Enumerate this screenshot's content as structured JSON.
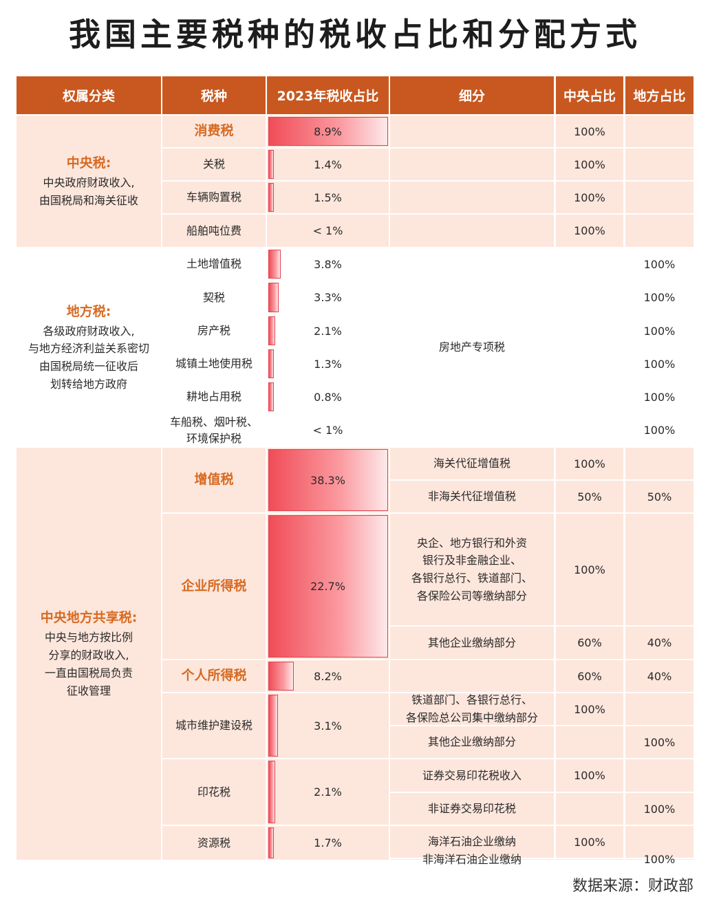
{
  "title": "我国主要税种的税收占比和分配方式",
  "source": "数据来源：财政部",
  "headers": [
    "权属分类",
    "税种",
    "2023年税收占比",
    "细分",
    "中央占比",
    "地方占比"
  ],
  "colors": {
    "header": "#c8581f",
    "shade": "#fde6dc",
    "bar": "#f04d58",
    "highlight": "#d66a22"
  },
  "categories": [
    {
      "title": "中央税:",
      "desc": [
        "中央政府财政收入,",
        "由国税局和海关征收"
      ],
      "rows": [
        0,
        4
      ]
    },
    {
      "title": "地方税:",
      "desc": [
        "各级政府财政收入,",
        "与地方经济利益关系密切",
        "由国税局统一征收后",
        "划转给地方政府"
      ],
      "rows": [
        4,
        10
      ]
    },
    {
      "title": "中央地方共享税:",
      "desc": [
        "中央与地方按比例",
        "分享的财政收入,",
        "一直由国税局负责",
        "征收管理"
      ],
      "rows": [
        10,
        23
      ]
    }
  ],
  "chart_data": {
    "type": "table",
    "title": "我国主要税种的税收占比和分配方式",
    "xlabel": "2023年税收占比",
    "taxes": [
      {
        "name": "消费税",
        "label": "8.9%",
        "value": 8.9,
        "highlight": true,
        "rows": [
          0,
          1
        ]
      },
      {
        "name": "关税",
        "label": "1.4%",
        "value": 1.4,
        "rows": [
          1,
          2
        ]
      },
      {
        "name": "车辆购置税",
        "label": "1.5%",
        "value": 1.5,
        "rows": [
          2,
          3
        ]
      },
      {
        "name": "船舶吨位费",
        "label": "< 1%",
        "value": null,
        "rows": [
          3,
          4
        ]
      },
      {
        "name": "土地增值税",
        "label": "3.8%",
        "value": 3.8,
        "rows": [
          4,
          5
        ]
      },
      {
        "name": "契税",
        "label": "3.3%",
        "value": 3.3,
        "rows": [
          5,
          6
        ]
      },
      {
        "name": "房产税",
        "label": "2.1%",
        "value": 2.1,
        "rows": [
          6,
          7
        ]
      },
      {
        "name": "城镇土地使用税",
        "label": "1.3%",
        "value": 1.3,
        "rows": [
          7,
          8
        ]
      },
      {
        "name": "耕地占用税",
        "label": "0.8%",
        "value": 0.8,
        "rows": [
          8,
          9
        ]
      },
      {
        "name": "车船税、烟叶税、\n环境保护税",
        "label": "< 1%",
        "value": null,
        "rows": [
          9,
          10
        ]
      },
      {
        "name": "增值税",
        "label": "38.3%",
        "value": 38.3,
        "highlight": true,
        "rows": [
          10,
          12
        ]
      },
      {
        "name": "企业所得税",
        "label": "22.7%",
        "value": 22.7,
        "highlight": true,
        "rows": [
          12,
          15
        ]
      },
      {
        "name": "个人所得税",
        "label": "8.2%",
        "value": 8.2,
        "highlight": true,
        "rows": [
          15,
          16
        ]
      },
      {
        "name": "城市维护建设税",
        "label": "3.1%",
        "value": 3.1,
        "rows": [
          16,
          18
        ]
      },
      {
        "name": "印花税",
        "label": "2.1%",
        "value": 2.1,
        "rows": [
          18,
          20
        ]
      },
      {
        "name": "资源税",
        "label": "1.7%",
        "value": 1.7,
        "rows": [
          20,
          22
        ]
      }
    ],
    "details": [
      {
        "text": "",
        "central": "100%",
        "local": "",
        "rows": [
          0,
          1
        ]
      },
      {
        "text": "",
        "central": "100%",
        "local": "",
        "rows": [
          1,
          2
        ]
      },
      {
        "text": "",
        "central": "100%",
        "local": "",
        "rows": [
          2,
          3
        ]
      },
      {
        "text": "",
        "central": "100%",
        "local": "",
        "rows": [
          3,
          4
        ]
      },
      {
        "text": "房地产专项税",
        "central": "",
        "local": "",
        "rows": [
          4,
          10
        ]
      },
      {
        "text": "海关代征增值税",
        "central": "100%",
        "local": "",
        "rows": [
          10,
          11
        ]
      },
      {
        "text": "非海关代征增值税",
        "central": "50%",
        "local": "50%",
        "rows": [
          11,
          12
        ]
      },
      {
        "text": "央企、地方银行和外资\n银行及非金融企业、\n各银行总行、铁道部门、\n各保险公司等缴纳部分",
        "central": "100%",
        "local": "",
        "rows": [
          12,
          14
        ]
      },
      {
        "text": "其他企业缴纳部分",
        "central": "60%",
        "local": "40%",
        "rows": [
          14,
          15
        ]
      },
      {
        "text": "",
        "central": "60%",
        "local": "40%",
        "rows": [
          15,
          16
        ]
      },
      {
        "text": "铁道部门、各银行总行、\n各保险总公司集中缴纳部分",
        "central": "100%",
        "local": "",
        "rows": [
          16,
          17
        ]
      },
      {
        "text": "其他企业缴纳部分",
        "central": "",
        "local": "100%",
        "rows": [
          17,
          18
        ]
      },
      {
        "text": "证券交易印花税收入",
        "central": "100%",
        "local": "",
        "rows": [
          18,
          19
        ]
      },
      {
        "text": "非证券交易印花税",
        "central": "",
        "local": "100%",
        "rows": [
          19,
          20
        ]
      },
      {
        "text": "海洋石油企业缴纳",
        "central": "100%",
        "local": "",
        "rows": [
          20,
          21
        ]
      },
      {
        "text": "非海洋石油企业缴纳",
        "central": "",
        "local": "100%",
        "rows": [
          21,
          22
        ]
      }
    ],
    "local_only": [
      {
        "local": "100%",
        "rows": [
          4,
          5
        ]
      },
      {
        "local": "100%",
        "rows": [
          5,
          6
        ]
      },
      {
        "local": "100%",
        "rows": [
          6,
          7
        ]
      },
      {
        "local": "100%",
        "rows": [
          7,
          8
        ]
      },
      {
        "local": "100%",
        "rows": [
          8,
          9
        ]
      },
      {
        "local": "100%",
        "rows": [
          9,
          10
        ]
      }
    ]
  }
}
